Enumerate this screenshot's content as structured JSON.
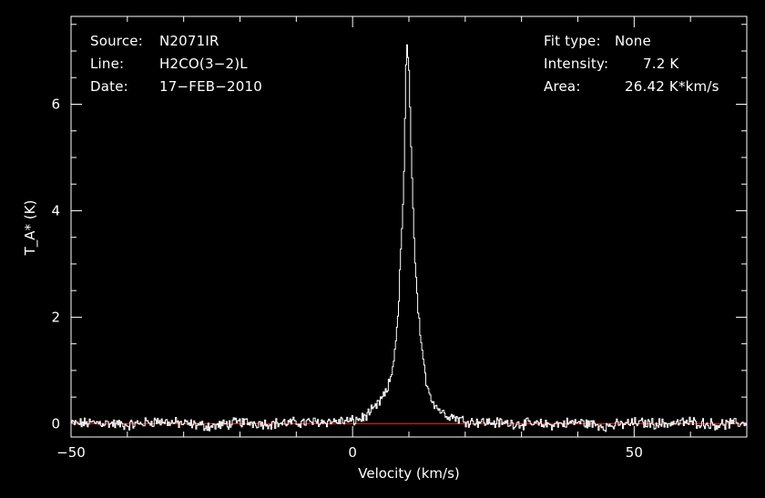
{
  "header_left": {
    "source_label": "Source:",
    "source_value": "N2071IR",
    "line_label": "Line:",
    "line_value": "H2CO(3−2)L",
    "date_label": "Date:",
    "date_value": "17−FEB−2010"
  },
  "header_right": {
    "fit_label": "Fit type:",
    "fit_value": "None",
    "intensity_label": "Intensity:",
    "intensity_value": "7.2 K",
    "area_label": "Area:",
    "area_value": "26.42 K*km/s"
  },
  "colors": {
    "spectrum": "#ffffff",
    "baseline": "#ff2020",
    "frame": "#ffffff",
    "background": "#000000"
  },
  "chart_data": {
    "type": "line",
    "xlabel": "Velocity (km/s)",
    "ylabel": "T_A* (K)",
    "xlim": [
      -50,
      70
    ],
    "ylim": [
      -0.25,
      7.65
    ],
    "xticks": [
      -50,
      0,
      50
    ],
    "xtick_labels": [
      "−50",
      "0",
      "50"
    ],
    "yticks": [
      0,
      2,
      4,
      6
    ],
    "ytick_labels": [
      "0",
      "2",
      "4",
      "6"
    ],
    "baseline": 0,
    "peak": {
      "velocity": 9.7,
      "intensity": 7.2
    },
    "series": [
      {
        "x": [
          -50,
          -45,
          -40,
          -35,
          -30,
          -25,
          -20,
          -15,
          -10,
          -5,
          0,
          2,
          4,
          5,
          6,
          7,
          8,
          9,
          9.5,
          10,
          10.5,
          11,
          12,
          13,
          14,
          15,
          16,
          18,
          20,
          25,
          30,
          35,
          40,
          45,
          50,
          55,
          60,
          65,
          70
        ],
        "y": [
          0,
          0.02,
          -0.03,
          0.05,
          0,
          -0.05,
          0.03,
          0,
          0.02,
          0.04,
          0.05,
          0.12,
          0.3,
          0.45,
          0.6,
          1.0,
          2.0,
          4.5,
          7.2,
          6.5,
          4.5,
          3.0,
          1.5,
          0.8,
          0.45,
          0.3,
          0.2,
          0.12,
          0.05,
          0.02,
          0,
          -0.02,
          0.03,
          -0.05,
          0.02,
          0,
          0.03,
          -0.02,
          0.02
        ]
      }
    ],
    "grid": false,
    "legend": "none"
  }
}
